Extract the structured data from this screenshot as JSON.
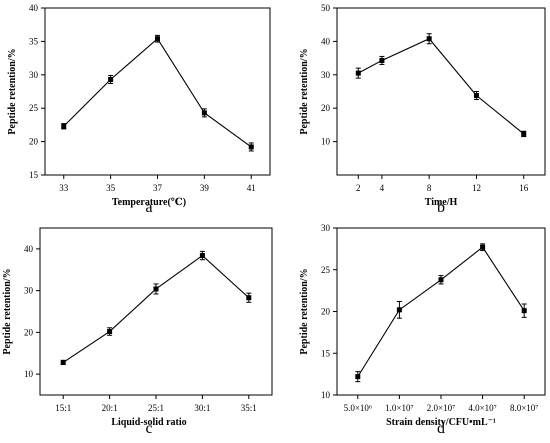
{
  "chart_data": [
    {
      "type": "line",
      "panel": "a",
      "xlabel": "Temperature(℃)",
      "ylabel": "Peptide retention/%",
      "x": [
        33,
        35,
        37,
        39,
        41
      ],
      "x_ticks": [
        "33",
        "35",
        "37",
        "39",
        "41"
      ],
      "values": [
        22.3,
        29.3,
        35.4,
        24.3,
        19.2
      ],
      "errors": [
        0.4,
        0.6,
        0.5,
        0.6,
        0.6
      ],
      "ylim": [
        15,
        40
      ],
      "y_ticks": [
        "15",
        "20",
        "25",
        "30",
        "35",
        "40"
      ],
      "grid": false
    },
    {
      "type": "line",
      "panel": "b",
      "xlabel": "Time/H",
      "ylabel": "Peptide retention/%",
      "x": [
        2,
        4,
        8,
        12,
        16
      ],
      "x_ticks": [
        "2",
        "4",
        "8",
        "12",
        "16"
      ],
      "values": [
        30.5,
        34.3,
        40.8,
        23.8,
        12.3
      ],
      "errors": [
        1.5,
        1.2,
        1.5,
        1.2,
        0.8
      ],
      "ylim": [
        0,
        50
      ],
      "y_ticks": [
        "10",
        "20",
        "30",
        "40",
        "50"
      ],
      "grid": false
    },
    {
      "type": "line",
      "panel": "c",
      "xlabel": "Liquid-solid ratio",
      "ylabel": "Peptide retention/%",
      "categories": [
        "15:1",
        "20:1",
        "25:1",
        "30:1",
        "35:1"
      ],
      "values": [
        12.8,
        20.2,
        30.4,
        38.4,
        28.3
      ],
      "errors": [
        0.5,
        0.9,
        1.2,
        1.0,
        1.1
      ],
      "ylim": [
        5,
        45
      ],
      "y_ticks": [
        "10",
        "20",
        "30",
        "40"
      ],
      "grid": false
    },
    {
      "type": "line",
      "panel": "d",
      "xlabel": "Strain density/CFU•mL⁻¹",
      "ylabel": "Peptide retention/%",
      "categories": [
        "5.0×10⁶",
        "1.0×10⁷",
        "2.0×10⁷",
        "4.0×10⁷",
        "8.0×10⁷"
      ],
      "values": [
        12.2,
        20.2,
        23.8,
        27.7,
        20.1
      ],
      "errors": [
        0.6,
        1.0,
        0.5,
        0.4,
        0.8
      ],
      "ylim": [
        10,
        30
      ],
      "y_ticks": [
        "10",
        "15",
        "20",
        "25",
        "30"
      ],
      "grid": false
    }
  ]
}
